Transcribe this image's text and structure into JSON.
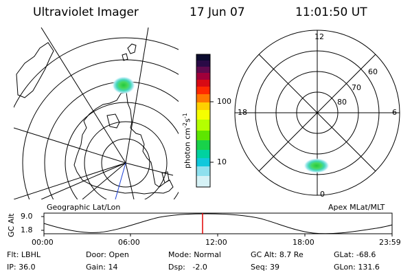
{
  "header": {
    "instrument": "Ultraviolet Imager",
    "date": "17 Jun 07",
    "time": "11:01:50 UT"
  },
  "left_map": {
    "caption": "Geographic Lat/Lon"
  },
  "right_map": {
    "caption": "Apex MLat/MLT",
    "mlt_labels": [
      "12",
      "18",
      "6",
      "0"
    ],
    "mlat_labels": [
      "60",
      "70",
      "80"
    ]
  },
  "colorbar": {
    "unit_label": "photon cm",
    "unit_exp1": "-2",
    "unit_s": "s",
    "unit_exp2": "-1",
    "ticks": [
      "100",
      "10"
    ],
    "colors": [
      "#0b0b2e",
      "#2a0a46",
      "#600a4e",
      "#a0003a",
      "#d80a14",
      "#ff5000",
      "#ff9600",
      "#fff000",
      "#c8ff00",
      "#6ee600",
      "#00d48a",
      "#00c8d8",
      "#9ee8f2",
      "#ffffff"
    ]
  },
  "timeline": {
    "y_label": "GC Alt",
    "y_ticks": [
      "9.0",
      "1.8"
    ],
    "x_ticks": [
      "00:00",
      "06:00",
      "12:00",
      "18:00",
      "23:59"
    ],
    "marker_fraction": 0.456
  },
  "status": {
    "row1": [
      {
        "key": "Flt:",
        "value": "LBHL"
      },
      {
        "key": "Door:",
        "value": "Open"
      },
      {
        "key": "Mode:",
        "value": "Normal"
      },
      {
        "key": "GC Alt:",
        "value": "8.7 Re"
      },
      {
        "key": "GLat:",
        "value": "-68.6"
      }
    ],
    "row2": [
      {
        "key": "IP:",
        "value": "36.0"
      },
      {
        "key": "Gain:",
        "value": "14"
      },
      {
        "key": "Dsp:",
        "value": "  -2.0"
      },
      {
        "key": "Seq:",
        "value": "39"
      },
      {
        "key": "GLon:",
        "value": "131.6"
      }
    ]
  }
}
